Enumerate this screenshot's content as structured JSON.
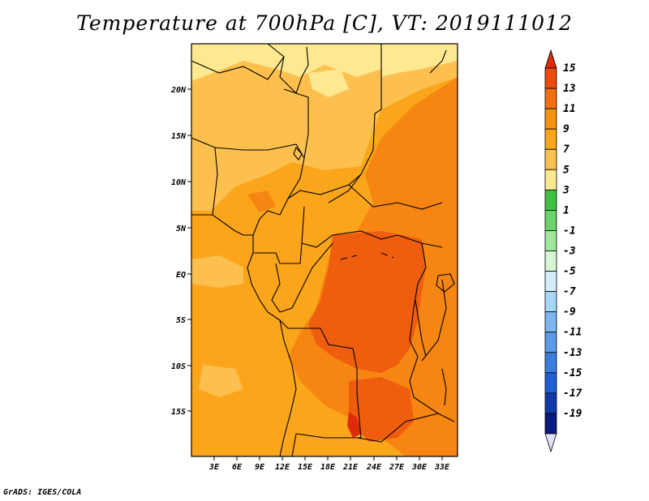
{
  "title": "Temperature at 700hPa [C], VT: 2019111012",
  "credit": "GrADS: IGES/COLA",
  "map": {
    "lat_labels": [
      "20N",
      "15N",
      "10N",
      "5N",
      "EQ",
      "5S",
      "10S",
      "15S"
    ],
    "lon_labels": [
      "3E",
      "6E",
      "9E",
      "12E",
      "15E",
      "18E",
      "21E",
      "24E",
      "27E",
      "30E",
      "33E"
    ],
    "colors": {
      "t5_7": "#fee890",
      "t7_9": "#fdc04f",
      "t9_11": "#fba51b",
      "t11_13": "#f78511",
      "t13_15": "#ef5e0e",
      "border": "#000000"
    }
  },
  "colorbar": {
    "labels": [
      "15",
      "13",
      "11",
      "9",
      "7",
      "5",
      "3",
      "1",
      "-1",
      "-3",
      "-5",
      "-7",
      "-9",
      "-11",
      "-13",
      "-15",
      "-17",
      "-19"
    ],
    "colors": [
      "#dd2a0a",
      "#ef4a0c",
      "#f36f10",
      "#f8920e",
      "#fba51b",
      "#fdc04f",
      "#fee890",
      "#40c040",
      "#6ad36a",
      "#9ee89e",
      "#d6f6d6",
      "#d6eefc",
      "#a6d6f8",
      "#7bb6f0",
      "#5b9aea",
      "#3a7fe0",
      "#1e5ed6",
      "#103aa9",
      "#0a1a80",
      "#e0e0f8"
    ]
  }
}
